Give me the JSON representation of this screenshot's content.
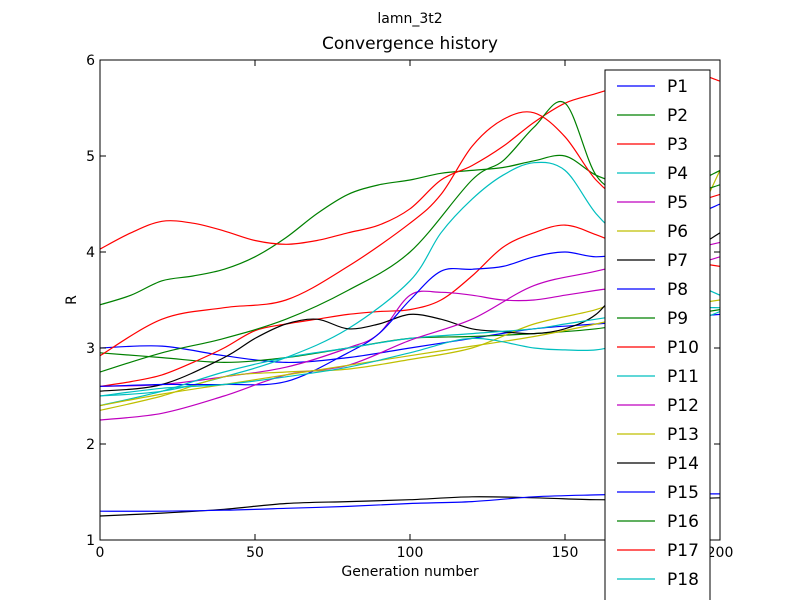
{
  "chart_data": {
    "type": "line",
    "suptitle": "lamn_3t2",
    "title": "Convergence history",
    "xlabel": "Generation number",
    "ylabel": "R",
    "xlim": [
      0,
      200
    ],
    "ylim": [
      1,
      6
    ],
    "xticks": [
      0,
      50,
      100,
      150,
      200
    ],
    "xtick_labels": [
      "0",
      "50",
      "100",
      "150",
      "200"
    ],
    "yticks": [
      1,
      2,
      3,
      4,
      5,
      6
    ],
    "ytick_labels": [
      "1",
      "2",
      "3",
      "4",
      "5",
      "6"
    ],
    "grid": false,
    "legend_position": "right",
    "series": [
      {
        "name": "P1",
        "color": "#0000ff",
        "x": [
          0,
          20,
          40,
          60,
          80,
          100,
          120,
          140,
          160,
          180,
          200
        ],
        "y": [
          3.0,
          3.02,
          2.92,
          2.85,
          2.9,
          3.0,
          3.1,
          3.2,
          3.25,
          3.3,
          3.35
        ]
      },
      {
        "name": "P2",
        "color": "#008000",
        "x": [
          0,
          20,
          40,
          60,
          80,
          100,
          120,
          140,
          160,
          180,
          200
        ],
        "y": [
          2.95,
          2.9,
          2.85,
          2.9,
          3.0,
          3.1,
          3.12,
          3.15,
          3.2,
          3.3,
          3.4
        ]
      },
      {
        "name": "P3",
        "color": "#ff0000",
        "x": [
          0,
          10,
          20,
          30,
          40,
          50,
          60,
          70,
          80,
          90,
          100,
          110,
          120,
          130,
          140,
          150,
          160,
          170,
          180,
          190,
          200
        ],
        "y": [
          2.6,
          2.65,
          2.72,
          2.85,
          3.0,
          3.18,
          3.25,
          3.3,
          3.35,
          3.38,
          3.4,
          3.5,
          3.75,
          4.05,
          4.2,
          4.28,
          4.18,
          4.05,
          3.95,
          3.9,
          3.85
        ]
      },
      {
        "name": "P4",
        "color": "#00bfbf",
        "x": [
          0,
          20,
          40,
          60,
          80,
          100,
          110,
          120,
          130,
          140,
          150,
          160,
          170,
          180,
          190,
          200
        ],
        "y": [
          2.5,
          2.55,
          2.7,
          2.9,
          3.2,
          3.7,
          4.2,
          4.55,
          4.8,
          4.93,
          4.85,
          4.4,
          4.1,
          3.9,
          3.7,
          3.55
        ]
      },
      {
        "name": "P5",
        "color": "#bf00bf",
        "x": [
          0,
          20,
          40,
          60,
          80,
          90,
          100,
          110,
          120,
          130,
          140,
          150,
          160,
          170,
          180,
          190,
          200
        ],
        "y": [
          2.6,
          2.62,
          2.7,
          2.8,
          3.0,
          3.15,
          3.55,
          3.58,
          3.55,
          3.5,
          3.5,
          3.55,
          3.6,
          3.65,
          3.75,
          3.85,
          3.95
        ]
      },
      {
        "name": "P6",
        "color": "#bfbf00",
        "x": [
          0,
          20,
          40,
          60,
          80,
          100,
          120,
          140,
          160,
          170,
          180,
          190,
          200
        ],
        "y": [
          2.35,
          2.5,
          2.7,
          2.75,
          2.78,
          2.88,
          3.0,
          3.25,
          3.4,
          3.55,
          3.8,
          4.2,
          4.85
        ]
      },
      {
        "name": "P7",
        "color": "#000000",
        "x": [
          0,
          20,
          40,
          50,
          60,
          70,
          80,
          90,
          100,
          110,
          120,
          130,
          140,
          150,
          160,
          170,
          180,
          190,
          200
        ],
        "y": [
          2.55,
          2.62,
          2.9,
          3.1,
          3.25,
          3.3,
          3.2,
          3.25,
          3.35,
          3.3,
          3.2,
          3.17,
          3.15,
          3.2,
          3.35,
          3.7,
          3.85,
          4.0,
          4.2
        ]
      },
      {
        "name": "P8",
        "color": "#0000ff",
        "x": [
          0,
          20,
          40,
          60,
          80,
          90,
          100,
          110,
          120,
          130,
          140,
          150,
          160,
          170,
          180,
          190,
          200
        ],
        "y": [
          2.6,
          2.62,
          2.62,
          2.65,
          2.95,
          3.15,
          3.5,
          3.8,
          3.82,
          3.85,
          3.95,
          4.0,
          3.95,
          4.0,
          4.15,
          4.35,
          4.5
        ]
      },
      {
        "name": "P9",
        "color": "#008000",
        "x": [
          0,
          10,
          20,
          30,
          40,
          50,
          60,
          70,
          80,
          90,
          100,
          110,
          120,
          130,
          140,
          150,
          160,
          170,
          180,
          190,
          200
        ],
        "y": [
          3.45,
          3.55,
          3.7,
          3.75,
          3.82,
          3.95,
          4.15,
          4.4,
          4.6,
          4.7,
          4.75,
          4.82,
          4.85,
          4.88,
          4.95,
          5.0,
          4.8,
          4.7,
          4.65,
          4.7,
          4.85
        ]
      },
      {
        "name": "P10",
        "color": "#ff0000",
        "x": [
          0,
          10,
          20,
          30,
          40,
          50,
          60,
          70,
          80,
          90,
          100,
          110,
          120,
          130,
          140,
          150,
          160,
          170,
          180,
          190,
          200
        ],
        "y": [
          4.03,
          4.2,
          4.32,
          4.3,
          4.22,
          4.12,
          4.08,
          4.12,
          4.2,
          4.28,
          4.45,
          4.75,
          4.9,
          5.1,
          5.35,
          5.55,
          5.65,
          5.75,
          5.85,
          5.88,
          5.78
        ]
      },
      {
        "name": "P11",
        "color": "#00bfbf",
        "x": [
          0,
          20,
          40,
          60,
          80,
          100,
          120,
          140,
          150,
          160,
          170,
          180,
          190,
          200
        ],
        "y": [
          2.4,
          2.55,
          2.75,
          2.9,
          3.0,
          3.1,
          3.15,
          3.2,
          3.25,
          3.3,
          3.35,
          3.4,
          3.42,
          3.42
        ]
      },
      {
        "name": "P12",
        "color": "#bf00bf",
        "x": [
          0,
          20,
          40,
          60,
          80,
          100,
          120,
          140,
          160,
          180,
          200
        ],
        "y": [
          2.25,
          2.32,
          2.5,
          2.72,
          2.82,
          3.08,
          3.3,
          3.65,
          3.8,
          3.95,
          4.1
        ]
      },
      {
        "name": "P13",
        "color": "#bfbf00",
        "x": [
          0,
          20,
          40,
          60,
          80,
          100,
          120,
          140,
          160,
          180,
          200
        ],
        "y": [
          2.4,
          2.52,
          2.62,
          2.72,
          2.82,
          2.92,
          3.02,
          3.12,
          3.25,
          3.4,
          3.5
        ]
      },
      {
        "name": "P14",
        "color": "#000000",
        "x": [
          0,
          20,
          40,
          60,
          80,
          100,
          120,
          140,
          160,
          180,
          200
        ],
        "y": [
          1.25,
          1.28,
          1.32,
          1.38,
          1.4,
          1.42,
          1.45,
          1.44,
          1.42,
          1.42,
          1.44
        ]
      },
      {
        "name": "P15",
        "color": "#0000ff",
        "x": [
          0,
          20,
          40,
          60,
          80,
          100,
          120,
          140,
          160,
          180,
          200
        ],
        "y": [
          1.3,
          1.3,
          1.31,
          1.33,
          1.35,
          1.38,
          1.4,
          1.45,
          1.47,
          1.48,
          1.48
        ]
      },
      {
        "name": "P16",
        "color": "#008000",
        "x": [
          0,
          20,
          40,
          60,
          80,
          100,
          120,
          130,
          140,
          150,
          160,
          170,
          180,
          190,
          200
        ],
        "y": [
          2.75,
          2.95,
          3.1,
          3.3,
          3.6,
          4.0,
          4.75,
          4.95,
          5.3,
          5.55,
          4.8,
          4.6,
          4.55,
          4.6,
          4.7
        ]
      },
      {
        "name": "P17",
        "color": "#ff0000",
        "x": [
          0,
          20,
          40,
          60,
          80,
          100,
          110,
          120,
          130,
          140,
          150,
          160,
          170,
          180,
          190,
          200
        ],
        "y": [
          2.92,
          3.3,
          3.42,
          3.5,
          3.85,
          4.3,
          4.6,
          5.1,
          5.38,
          5.45,
          5.2,
          4.75,
          4.5,
          4.4,
          4.5,
          4.6
        ]
      },
      {
        "name": "P18",
        "color": "#00bfbf",
        "x": [
          0,
          20,
          40,
          60,
          80,
          100,
          120,
          140,
          150,
          160,
          170,
          180,
          190,
          200
        ],
        "y": [
          2.5,
          2.58,
          2.62,
          2.7,
          2.8,
          2.95,
          3.1,
          3.0,
          2.98,
          2.98,
          3.05,
          3.15,
          3.25,
          3.38
        ]
      }
    ]
  }
}
